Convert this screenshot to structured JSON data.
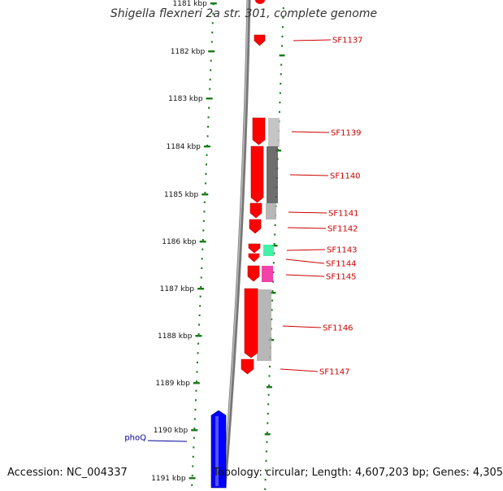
{
  "title": "Shigella flexneri 2a str. 301, complete genome",
  "footer": {
    "accession": "Accession: NC_004337",
    "summary": "Topology: circular; Length: 4,607,203 bp; Genes: 4,305"
  },
  "colors": {
    "tick": "#1a7a1a",
    "gene_forward": "#ff0000",
    "gene_reverse": "#0000ff",
    "label_sf": "#cc0000",
    "label_phoq": "#000099",
    "backbone": "#888888"
  },
  "scale": {
    "unit": "kbp",
    "ticks": [
      "1181 kbp",
      "1182 kbp",
      "1183 kbp",
      "1184 kbp",
      "1185 kbp",
      "1186 kbp",
      "1187 kbp",
      "1188 kbp",
      "1189 kbp",
      "1190 kbp",
      "1191 kbp"
    ]
  },
  "genes": [
    {
      "name": "SF1137",
      "strand": "+",
      "color": "red"
    },
    {
      "name": "SF1139",
      "strand": "+",
      "color": "red"
    },
    {
      "name": "SF1140",
      "strand": "+",
      "color": "red"
    },
    {
      "name": "SF1141",
      "strand": "+",
      "color": "red"
    },
    {
      "name": "SF1142",
      "strand": "+",
      "color": "red"
    },
    {
      "name": "SF1143",
      "strand": "+",
      "color": "red"
    },
    {
      "name": "SF1144",
      "strand": "+",
      "color": "red"
    },
    {
      "name": "SF1145",
      "strand": "+",
      "color": "red"
    },
    {
      "name": "SF1146",
      "strand": "+",
      "color": "red"
    },
    {
      "name": "SF1147",
      "strand": "+",
      "color": "red"
    },
    {
      "name": "phoQ",
      "strand": "-",
      "color": "blue"
    }
  ]
}
